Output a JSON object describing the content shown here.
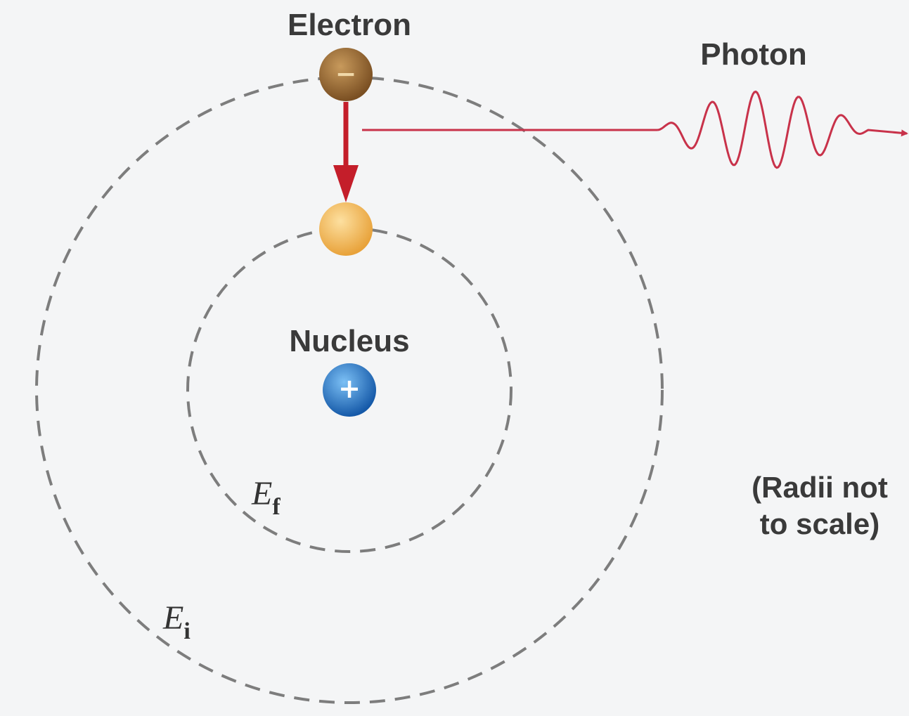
{
  "labels": {
    "electron": "Electron",
    "photon": "Photon",
    "nucleus": "Nucleus",
    "electron_charge": "−",
    "nucleus_charge": "+",
    "final_orbit": {
      "symbol": "E",
      "subscript": "f"
    },
    "initial_orbit": {
      "symbol": "E",
      "subscript": "i"
    },
    "note": [
      "(Radii not",
      "to scale)"
    ]
  }
}
